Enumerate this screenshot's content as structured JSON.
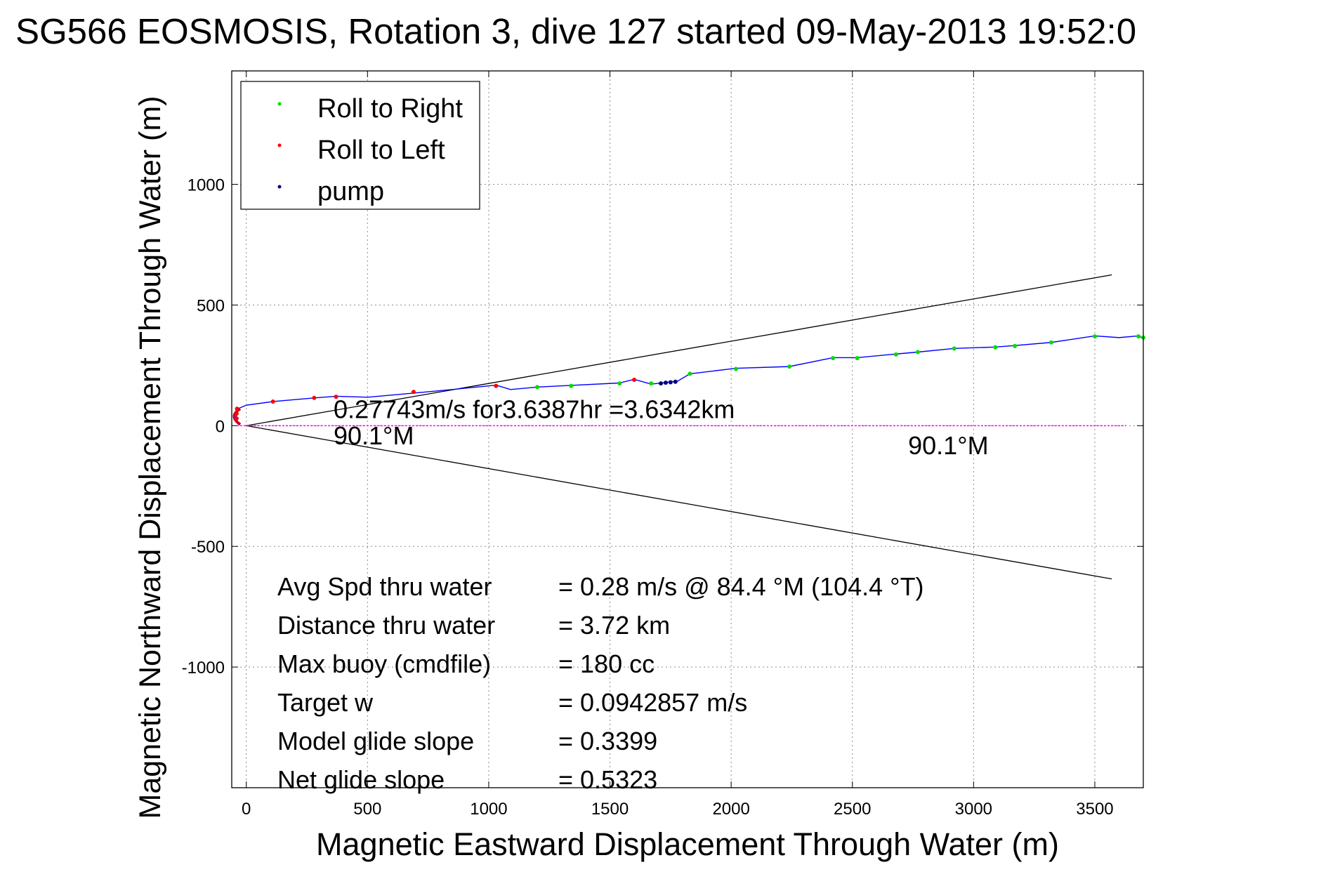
{
  "chart_data": {
    "type": "scatter",
    "title": "SG566 EOSMOSIS, Rotation 3, dive 127 started 09-May-2013 19:52:0",
    "xlabel": "Magnetic Eastward Displacement Through Water (m)",
    "ylabel": "Magnetic Northward Displacement Through Water (m)",
    "xlim": [
      -60,
      3700
    ],
    "ylim": [
      -1500,
      1470
    ],
    "xticks": [
      0,
      500,
      1000,
      1500,
      2000,
      2500,
      3000,
      3500
    ],
    "yticks": [
      -1000,
      -500,
      0,
      500,
      1000
    ],
    "grid": true,
    "legend_position": "top-left",
    "series": [
      {
        "name": "Roll to Right",
        "color": "#00dd00",
        "marker": "dot",
        "points": [
          [
            1200,
            160
          ],
          [
            1340,
            165
          ],
          [
            1540,
            175
          ],
          [
            1670,
            175
          ],
          [
            1830,
            215
          ],
          [
            2020,
            235
          ],
          [
            2240,
            245
          ],
          [
            2420,
            280
          ],
          [
            2520,
            280
          ],
          [
            2680,
            295
          ],
          [
            2770,
            305
          ],
          [
            2920,
            320
          ],
          [
            3090,
            325
          ],
          [
            3170,
            330
          ],
          [
            3320,
            345
          ],
          [
            3500,
            370
          ],
          [
            3680,
            370
          ],
          [
            3700,
            365
          ]
        ]
      },
      {
        "name": "Roll to Left",
        "color": "#ff0000",
        "marker": "dot",
        "points": [
          [
            -40,
            30
          ],
          [
            -40,
            50
          ],
          [
            -38,
            70
          ],
          [
            110,
            100
          ],
          [
            280,
            115
          ],
          [
            370,
            120
          ],
          [
            690,
            140
          ],
          [
            1030,
            165
          ],
          [
            1600,
            190
          ]
        ]
      },
      {
        "name": "pump",
        "color": "#000080",
        "marker": "dot",
        "points": [
          [
            1710,
            175
          ],
          [
            1730,
            178
          ],
          [
            1750,
            180
          ],
          [
            1770,
            182
          ]
        ]
      }
    ],
    "track": {
      "color": "#0000ff",
      "points": [
        [
          -45,
          20
        ],
        [
          -35,
          70
        ],
        [
          0,
          85
        ],
        [
          110,
          100
        ],
        [
          280,
          115
        ],
        [
          370,
          122
        ],
        [
          500,
          118
        ],
        [
          690,
          135
        ],
        [
          850,
          150
        ],
        [
          1030,
          168
        ],
        [
          1090,
          150
        ],
        [
          1200,
          160
        ],
        [
          1340,
          167
        ],
        [
          1540,
          177
        ],
        [
          1600,
          192
        ],
        [
          1670,
          172
        ],
        [
          1780,
          185
        ],
        [
          1830,
          215
        ],
        [
          2020,
          238
        ],
        [
          2240,
          245
        ],
        [
          2420,
          282
        ],
        [
          2520,
          282
        ],
        [
          2680,
          297
        ],
        [
          2770,
          305
        ],
        [
          2920,
          320
        ],
        [
          3090,
          326
        ],
        [
          3170,
          332
        ],
        [
          3320,
          345
        ],
        [
          3500,
          372
        ],
        [
          3600,
          365
        ],
        [
          3680,
          372
        ],
        [
          3700,
          362
        ]
      ]
    },
    "heading_line": {
      "color": "#ff00ff",
      "from": [
        -40,
        0
      ],
      "to": [
        3630,
        0
      ]
    },
    "cone_lines": {
      "color": "#000000",
      "from": [
        0,
        0
      ],
      "ends": [
        [
          3570,
          625
        ],
        [
          3570,
          -635
        ]
      ]
    },
    "annotations": [
      {
        "name": "speed-annotation",
        "text": "0.27743m/s for3.6387hr =3.6342km",
        "x": 360,
        "y": 32
      },
      {
        "name": "heading-left",
        "text": "90.1°M",
        "x": 360,
        "y": -78
      },
      {
        "name": "heading-right",
        "text": "90.1°M",
        "x": 2730,
        "y": -118
      }
    ],
    "stats": [
      {
        "label": "Avg Spd thru water",
        "value": "=  0.28 m/s @  84.4 °M (104.4 °T)"
      },
      {
        "label": "Distance thru water",
        "value": "=  3.72 km"
      },
      {
        "label": "Max buoy (cmdfile)",
        "value": "= 180 cc"
      },
      {
        "label": "Target w",
        "value": "= 0.0942857 m/s"
      },
      {
        "label": "Model glide slope",
        "value": "= 0.3399"
      },
      {
        "label": "Net glide slope",
        "value": "= 0.5323"
      }
    ]
  }
}
